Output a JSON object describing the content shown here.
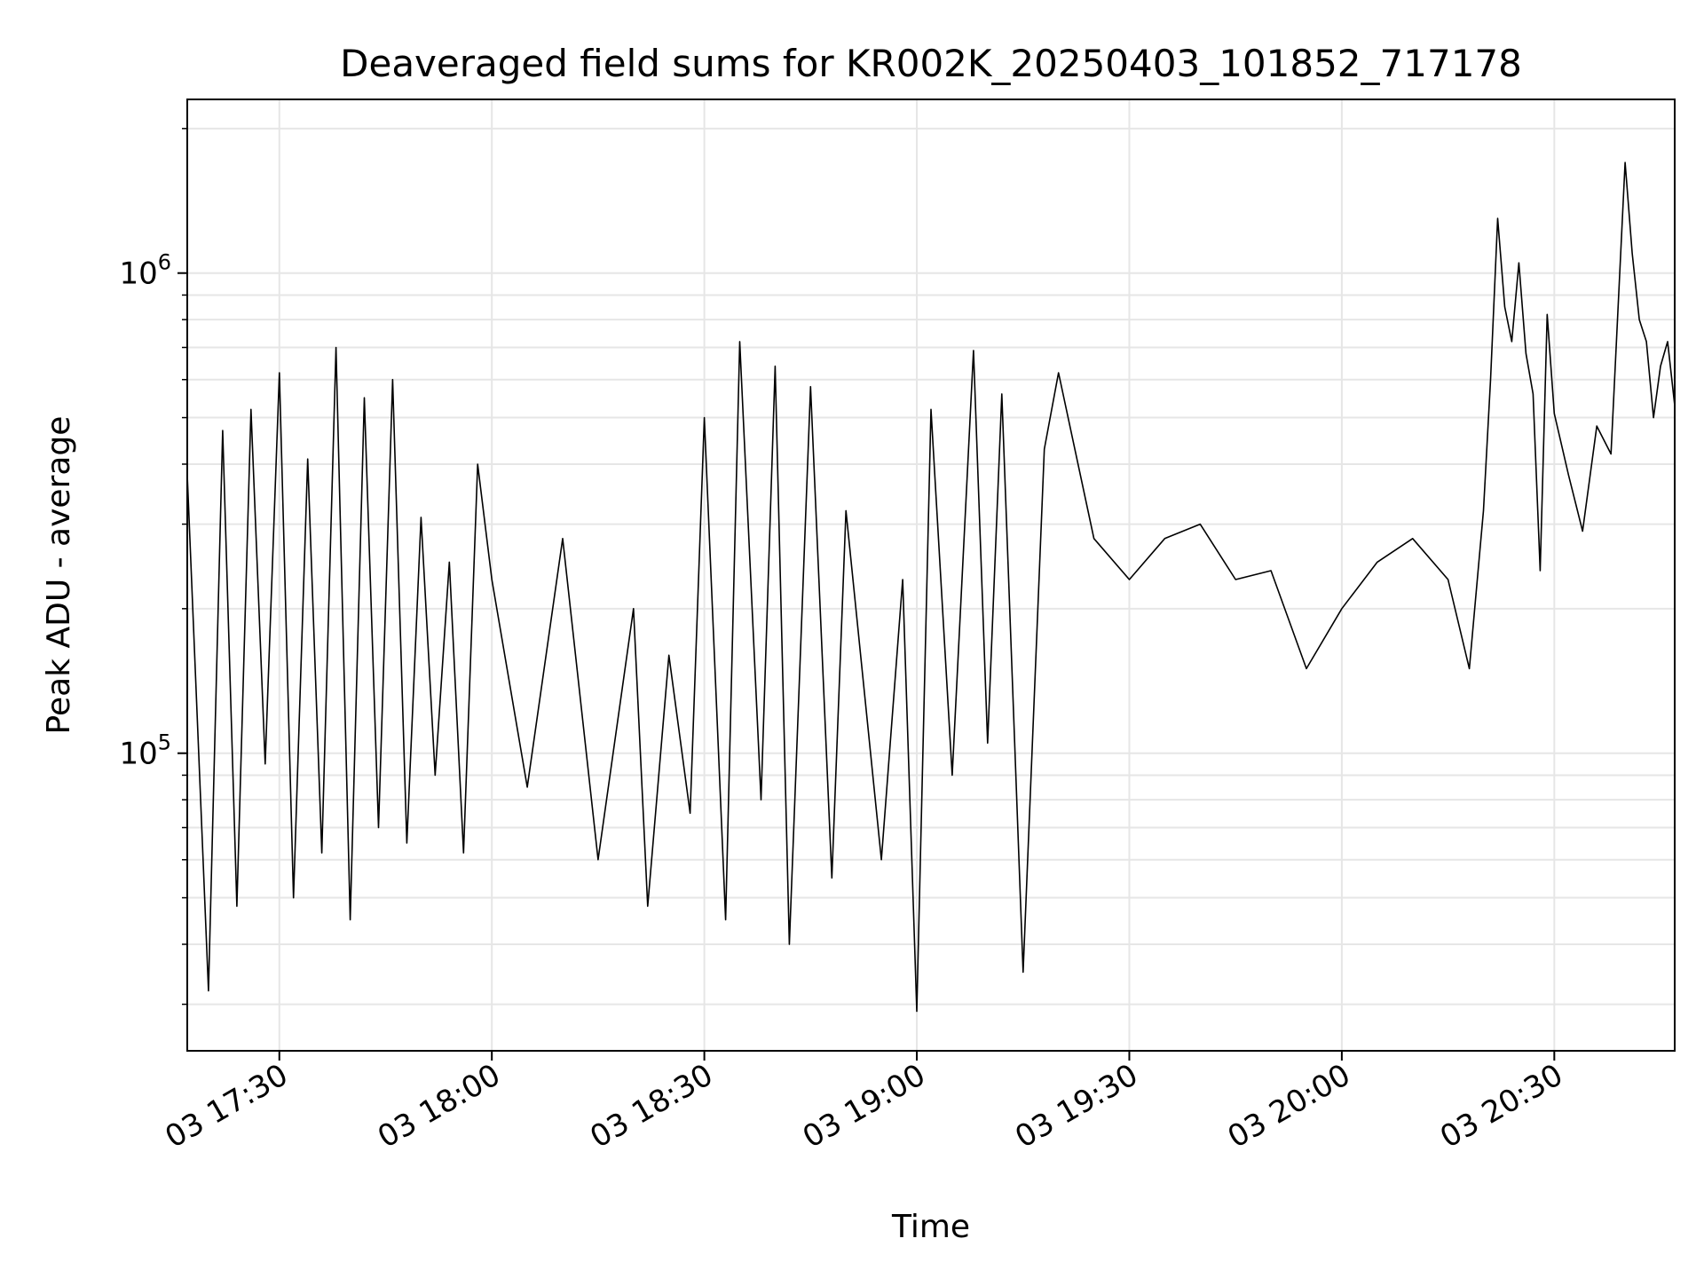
{
  "chart_data": {
    "type": "line",
    "title": "Deaveraged field sums for KR002K_20250403_101852_717178",
    "xlabel": "Time",
    "ylabel": "Peak ADU - average",
    "yscale": "log",
    "xlim": [
      "2025-04-03 17:17",
      "2025-04-03 20:47"
    ],
    "ylim": [
      24000,
      2300000
    ],
    "grid": true,
    "xticks": [
      "03 17:30",
      "03 18:00",
      "03 18:30",
      "03 19:00",
      "03 19:30",
      "03 20:00",
      "03 20:30"
    ],
    "yticks": [
      {
        "base": "10",
        "exp": "5",
        "value": 100000
      },
      {
        "base": "10",
        "exp": "6",
        "value": 1000000
      }
    ],
    "line_color": "#000000",
    "series": [
      {
        "x": [
          "17:17",
          "17:20",
          "17:22",
          "17:24",
          "17:26",
          "17:28",
          "17:30",
          "17:32",
          "17:34",
          "17:36",
          "17:38",
          "17:40",
          "17:42",
          "17:44",
          "17:46",
          "17:48",
          "17:50",
          "17:52",
          "17:54",
          "17:56",
          "17:58",
          "18:00",
          "18:05",
          "18:10",
          "18:15",
          "18:20",
          "18:22",
          "18:25",
          "18:28",
          "18:30",
          "18:33",
          "18:35",
          "18:38",
          "18:40",
          "18:42",
          "18:45",
          "18:48",
          "18:50",
          "18:55",
          "18:58",
          "19:00",
          "19:02",
          "19:05",
          "19:08",
          "19:10",
          "19:12",
          "19:15",
          "19:18",
          "19:20",
          "19:25",
          "19:30",
          "19:35",
          "19:40",
          "19:45",
          "19:50",
          "19:55",
          "20:00",
          "20:05",
          "20:10",
          "20:15",
          "20:18",
          "20:20",
          "20:21",
          "20:22",
          "20:23",
          "20:24",
          "20:25",
          "20:26",
          "20:27",
          "20:28",
          "20:29",
          "20:30",
          "20:32",
          "20:34",
          "20:36",
          "20:38",
          "20:40",
          "20:41",
          "20:42",
          "20:43",
          "20:44",
          "20:45",
          "20:46",
          "20:47"
        ],
        "y": [
          380000,
          32000,
          470000,
          48000,
          520000,
          95000,
          620000,
          50000,
          410000,
          62000,
          700000,
          45000,
          550000,
          70000,
          600000,
          65000,
          310000,
          90000,
          250000,
          62000,
          400000,
          230000,
          85000,
          280000,
          60000,
          200000,
          48000,
          160000,
          75000,
          500000,
          45000,
          720000,
          80000,
          640000,
          40000,
          580000,
          55000,
          320000,
          60000,
          230000,
          29000,
          520000,
          90000,
          690000,
          105000,
          560000,
          35000,
          430000,
          620000,
          280000,
          230000,
          280000,
          300000,
          230000,
          240000,
          150000,
          200000,
          250000,
          280000,
          230000,
          150000,
          320000,
          600000,
          1300000,
          850000,
          720000,
          1050000,
          680000,
          560000,
          240000,
          820000,
          510000,
          380000,
          290000,
          480000,
          420000,
          1700000,
          1100000,
          800000,
          720000,
          500000,
          640000,
          720000,
          530000
        ]
      }
    ]
  }
}
